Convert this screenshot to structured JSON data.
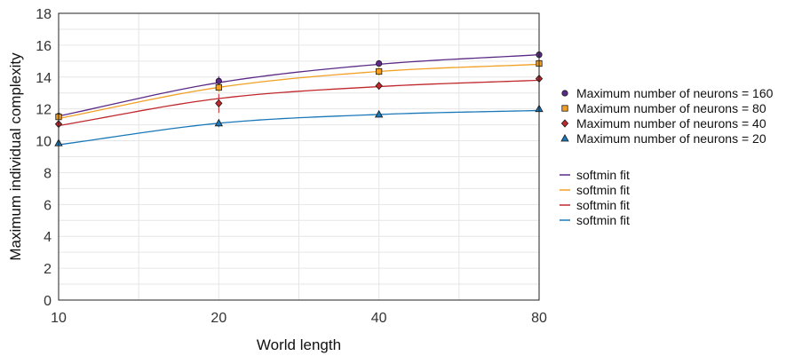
{
  "chart_data": {
    "type": "scatter",
    "xlabel": "World length",
    "ylabel": "Maximum individual complexity",
    "x_scale": "log2",
    "xlim": [
      10,
      80
    ],
    "ylim": [
      0,
      18
    ],
    "x_ticks": [
      "10",
      "20",
      "40",
      "80"
    ],
    "y_ticks": [
      "0",
      "2",
      "4",
      "6",
      "8",
      "10",
      "12",
      "14",
      "16",
      "18"
    ],
    "grid": true,
    "legend_position": "right",
    "x": [
      10,
      20,
      40,
      80
    ],
    "series": [
      {
        "name": "Maximum number of neurons = 160",
        "marker": "circle",
        "color": "#5b2a86",
        "values": [
          11.55,
          13.75,
          14.85,
          15.4
        ],
        "errors": [
          0.35,
          0.3,
          0.2,
          0.15
        ],
        "fit_label": "softmin fit",
        "fit_values": [
          11.55,
          13.65,
          14.8,
          15.4
        ]
      },
      {
        "name": "Maximum number of neurons = 80",
        "marker": "square",
        "color": "#f2a024",
        "values": [
          11.5,
          13.35,
          14.35,
          14.85
        ],
        "errors": [
          0.35,
          0.3,
          0.25,
          0.15
        ],
        "fit_label": "softmin fit",
        "fit_values": [
          11.4,
          13.35,
          14.35,
          14.8
        ]
      },
      {
        "name": "Maximum number of neurons = 40",
        "marker": "diamond",
        "color": "#c0282d",
        "values": [
          11.05,
          12.35,
          13.45,
          13.9
        ],
        "errors": [
          0.3,
          0.6,
          0.2,
          0.15
        ],
        "fit_label": "softmin fit",
        "fit_values": [
          10.95,
          12.65,
          13.4,
          13.8
        ]
      },
      {
        "name": "Maximum number of neurons = 20",
        "marker": "triangle",
        "color": "#1a78b8",
        "values": [
          9.85,
          11.1,
          11.65,
          12.0
        ],
        "errors": [
          0.3,
          0.25,
          0.15,
          0.15
        ],
        "fit_label": "softmin fit",
        "fit_values": [
          9.75,
          11.1,
          11.65,
          11.9
        ]
      }
    ]
  }
}
